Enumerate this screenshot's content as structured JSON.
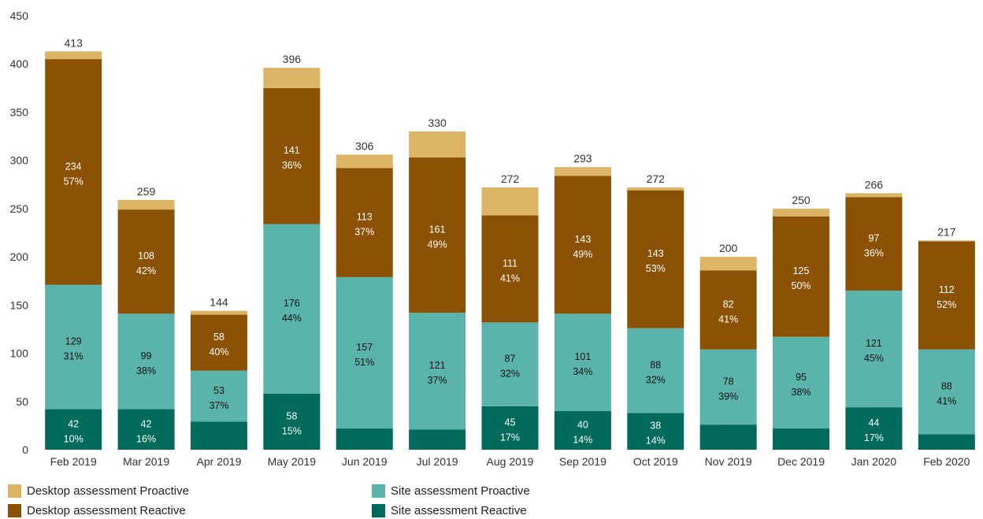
{
  "chart_data": {
    "type": "bar",
    "stacked": true,
    "categories": [
      "Feb 2019",
      "Mar 2019",
      "Apr 2019",
      "May 2019",
      "Jun 2019",
      "Jul 2019",
      "Aug 2019",
      "Sep 2019",
      "Oct 2019",
      "Nov 2019",
      "Dec 2019",
      "Jan 2020",
      "Feb 2020"
    ],
    "totals": [
      413,
      259,
      144,
      396,
      306,
      330,
      272,
      293,
      272,
      200,
      250,
      266,
      217
    ],
    "ylim": [
      0,
      450
    ],
    "yticks": [
      0,
      50,
      100,
      150,
      200,
      250,
      300,
      350,
      400,
      450
    ],
    "grid": false,
    "legend_position": "bottom",
    "series": [
      {
        "name": "Site assessment Reactive",
        "color": "#006a5b",
        "label_color": "#ffffff",
        "values": [
          42,
          42,
          29,
          58,
          22,
          21,
          45,
          40,
          38,
          26,
          22,
          44,
          16
        ],
        "value_labels": [
          "42",
          "42",
          "",
          "58",
          "",
          "",
          "45",
          "40",
          "38",
          "",
          "",
          "44",
          ""
        ],
        "pct_labels": [
          "10%",
          "16%",
          "",
          "15%",
          "",
          "",
          "17%",
          "14%",
          "14%",
          "",
          "",
          "17%",
          ""
        ]
      },
      {
        "name": "Site assessment Proactive",
        "color": "#5ab4ab",
        "label_color": "#111111",
        "values": [
          129,
          99,
          53,
          176,
          157,
          121,
          87,
          101,
          88,
          78,
          95,
          121,
          88
        ],
        "value_labels": [
          "129",
          "99",
          "53",
          "176",
          "157",
          "121",
          "87",
          "101",
          "88",
          "78",
          "95",
          "121",
          "88"
        ],
        "pct_labels": [
          "31%",
          "38%",
          "37%",
          "44%",
          "51%",
          "37%",
          "32%",
          "34%",
          "32%",
          "39%",
          "38%",
          "45%",
          "41%"
        ]
      },
      {
        "name": "Desktop assessment Reactive",
        "color": "#8b5105",
        "label_color": "#ffffff",
        "values": [
          234,
          108,
          58,
          141,
          113,
          161,
          111,
          143,
          143,
          82,
          125,
          97,
          112
        ],
        "value_labels": [
          "234",
          "108",
          "58",
          "141",
          "113",
          "161",
          "111",
          "143",
          "143",
          "82",
          "125",
          "97",
          "112"
        ],
        "pct_labels": [
          "57%",
          "42%",
          "40%",
          "36%",
          "37%",
          "49%",
          "41%",
          "49%",
          "53%",
          "41%",
          "50%",
          "36%",
          "52%"
        ]
      },
      {
        "name": "Desktop assessment Proactive",
        "color": "#dbb465",
        "label_color": "#111111",
        "values": [
          8,
          10,
          4,
          21,
          14,
          27,
          29,
          9,
          3,
          14,
          8,
          4,
          1
        ],
        "value_labels": [
          "",
          "",
          "",
          "",
          "",
          "",
          "",
          "",
          "",
          "",
          "",
          "",
          ""
        ],
        "pct_labels": [
          "",
          "",
          "",
          "",
          "",
          "",
          "",
          "",
          "",
          "",
          "",
          "",
          ""
        ]
      }
    ]
  },
  "legend": {
    "items": [
      {
        "label": "Desktop assessment Proactive",
        "color": "#dbb465"
      },
      {
        "label": "Site assessment Proactive",
        "color": "#5ab4ab"
      },
      {
        "label": "Desktop assessment Reactive",
        "color": "#8b5105"
      },
      {
        "label": "Site assessment Reactive",
        "color": "#006a5b"
      }
    ]
  }
}
